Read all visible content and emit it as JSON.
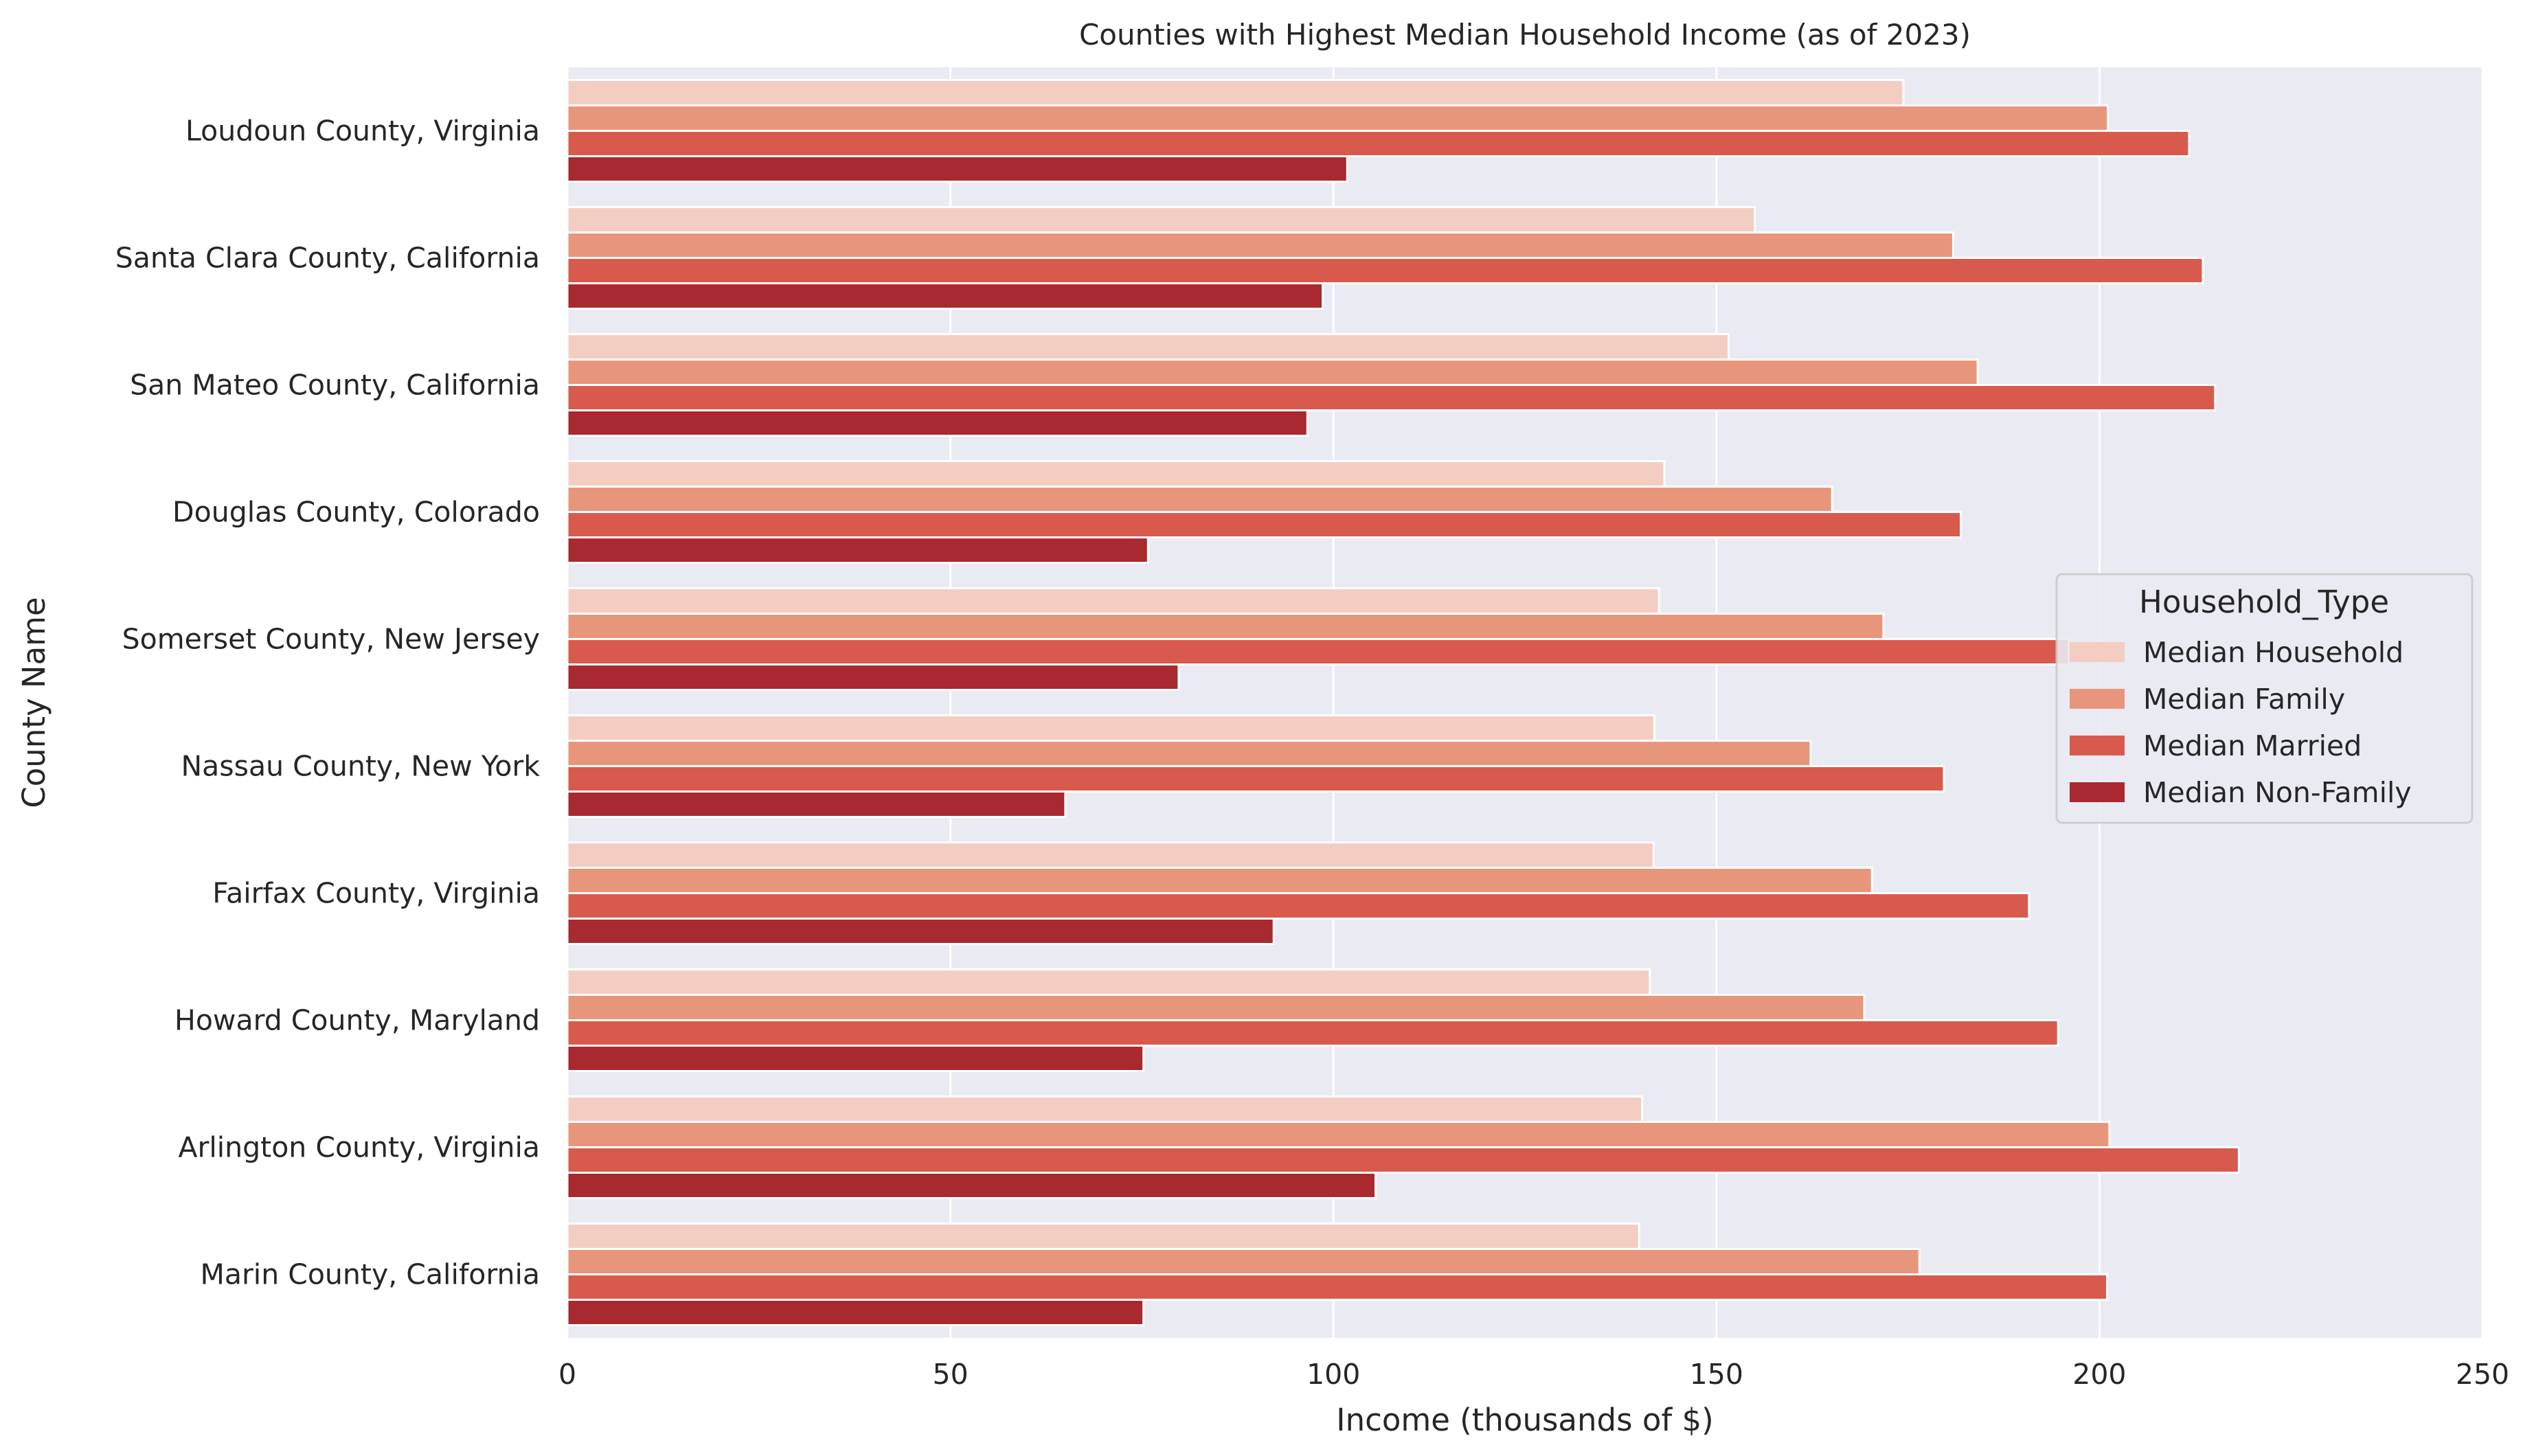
{
  "chart_data": {
    "type": "bar",
    "orientation": "horizontal",
    "title": "Counties with Highest Median Household Income (as of 2023)",
    "xlabel": "Income (thousands of $)",
    "ylabel": "County Name",
    "xlim": [
      0,
      250
    ],
    "xticks": [
      "0",
      "50",
      "100",
      "150",
      "200",
      "250"
    ],
    "grid": true,
    "legend": {
      "title": "Household_Type",
      "placement": "center-right"
    },
    "categories": [
      "Loudoun County, Virginia",
      "Santa Clara County, California",
      "San Mateo County, California",
      "Douglas County, Colorado",
      "Somerset County, New Jersey",
      "Nassau County, New York",
      "Fairfax County, Virginia",
      "Howard County, Maryland",
      "Arlington County, Virginia",
      "Marin County, California"
    ],
    "series": [
      {
        "name": "Median Household",
        "color": "#f4cdc2",
        "values": [
          174.4,
          155.0,
          151.6,
          143.2,
          142.5,
          141.9,
          141.8,
          141.3,
          140.3,
          139.9
        ]
      },
      {
        "name": "Median Family",
        "color": "#e8967b",
        "values": [
          201.1,
          180.9,
          184.1,
          165.1,
          171.8,
          162.3,
          170.3,
          169.3,
          201.3,
          176.5
        ]
      },
      {
        "name": "Median Married",
        "color": "#d85a4d",
        "values": [
          211.7,
          213.5,
          215.1,
          181.9,
          196.0,
          179.7,
          190.8,
          194.6,
          218.2,
          201.0
        ]
      },
      {
        "name": "Median Non-Family",
        "color": "#a8292f",
        "values": [
          101.8,
          98.6,
          96.6,
          75.8,
          79.8,
          65.0,
          92.2,
          75.2,
          105.5,
          75.2
        ]
      }
    ]
  }
}
